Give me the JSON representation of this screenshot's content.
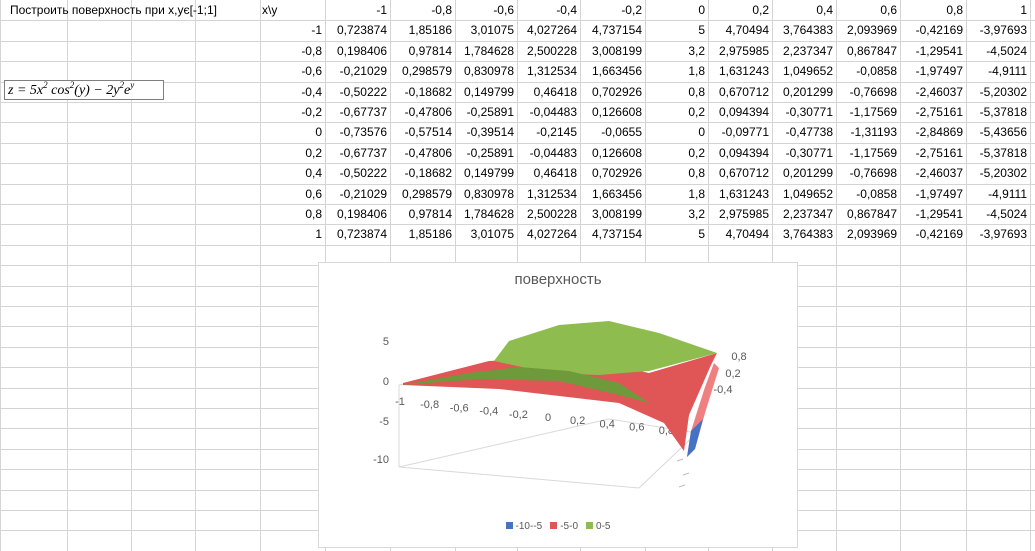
{
  "sheet": {
    "title_cell": "Построить поверхность при x,yє[-1;1]",
    "corner_label": "x\\y",
    "col_headers": [
      "-1",
      "-0,8",
      "-0,6",
      "-0,4",
      "-0,2",
      "0",
      "0,2",
      "0,4",
      "0,6",
      "0,8",
      "1"
    ],
    "rows": [
      {
        "x": "-1",
        "v": [
          "0,723874",
          "1,85186",
          "3,01075",
          "4,027264",
          "4,737154",
          "5",
          "4,70494",
          "3,764383",
          "2,093969",
          "-0,42169",
          "-3,97693"
        ]
      },
      {
        "x": "-0,8",
        "v": [
          "0,198406",
          "0,97814",
          "1,784628",
          "2,500228",
          "3,008199",
          "3,2",
          "2,975985",
          "2,237347",
          "0,867847",
          "-1,29541",
          "-4,5024"
        ]
      },
      {
        "x": "-0,6",
        "v": [
          "-0,21029",
          "0,298579",
          "0,830978",
          "1,312534",
          "1,663456",
          "1,8",
          "1,631243",
          "1,049652",
          "-0,0858",
          "-1,97497",
          "-4,9111"
        ]
      },
      {
        "x": "-0,4",
        "v": [
          "-0,50222",
          "-0,18682",
          "0,149799",
          "0,46418",
          "0,702926",
          "0,8",
          "0,670712",
          "0,201299",
          "-0,76698",
          "-2,46037",
          "-5,20302"
        ]
      },
      {
        "x": "-0,2",
        "v": [
          "-0,67737",
          "-0,47806",
          "-0,25891",
          "-0,04483",
          "0,126608",
          "0,2",
          "0,094394",
          "-0,30771",
          "-1,17569",
          "-2,75161",
          "-5,37818"
        ]
      },
      {
        "x": "0",
        "v": [
          "-0,73576",
          "-0,57514",
          "-0,39514",
          "-0,2145",
          "-0,0655",
          "0",
          "-0,09771",
          "-0,47738",
          "-1,31193",
          "-2,84869",
          "-5,43656"
        ]
      },
      {
        "x": "0,2",
        "v": [
          "-0,67737",
          "-0,47806",
          "-0,25891",
          "-0,04483",
          "0,126608",
          "0,2",
          "0,094394",
          "-0,30771",
          "-1,17569",
          "-2,75161",
          "-5,37818"
        ]
      },
      {
        "x": "0,4",
        "v": [
          "-0,50222",
          "-0,18682",
          "0,149799",
          "0,46418",
          "0,702926",
          "0,8",
          "0,670712",
          "0,201299",
          "-0,76698",
          "-2,46037",
          "-5,20302"
        ]
      },
      {
        "x": "0,6",
        "v": [
          "-0,21029",
          "0,298579",
          "0,830978",
          "1,312534",
          "1,663456",
          "1,8",
          "1,631243",
          "1,049652",
          "-0,0858",
          "-1,97497",
          "-4,9111"
        ]
      },
      {
        "x": "0,8",
        "v": [
          "0,198406",
          "0,97814",
          "1,784628",
          "2,500228",
          "3,008199",
          "3,2",
          "2,975985",
          "2,237347",
          "0,867847",
          "-1,29541",
          "-4,5024"
        ]
      },
      {
        "x": "1",
        "v": [
          "0,723874",
          "1,85186",
          "3,01075",
          "4,027264",
          "4,737154",
          "5",
          "4,70494",
          "3,764383",
          "2,093969",
          "-0,42169",
          "-3,97693"
        ]
      }
    ]
  },
  "formula": {
    "z_eq": "z = 5x",
    "sq1": "2",
    "cos": " cos",
    "sq2": "2",
    "mid": "(y) − 2y",
    "sq3": "2",
    "e": "e",
    "exp": "y"
  },
  "chart_data": {
    "type": "surface",
    "title": "поверхность",
    "z_ticks": [
      "5",
      "0",
      "-5",
      "-10"
    ],
    "x_ticks": [
      "-1",
      "-0,8",
      "-0,6",
      "-0,4",
      "-0,2",
      "0",
      "0,2",
      "0,4",
      "0,6",
      "0,8",
      "1"
    ],
    "y_ticks": [
      "0,8",
      "0,2",
      "-0,4"
    ],
    "legend": [
      {
        "label": "-10--5",
        "color": "#4472c4"
      },
      {
        "label": "-5-0",
        "color": "#e05555"
      },
      {
        "label": "0-5",
        "color": "#8fbc4f"
      }
    ]
  },
  "colors": {
    "grid_line": "#d4d4d4",
    "band_neg10_neg5": "#4472c4",
    "band_neg5_0": "#e05555",
    "band_0_5": "#8fbc4f"
  }
}
